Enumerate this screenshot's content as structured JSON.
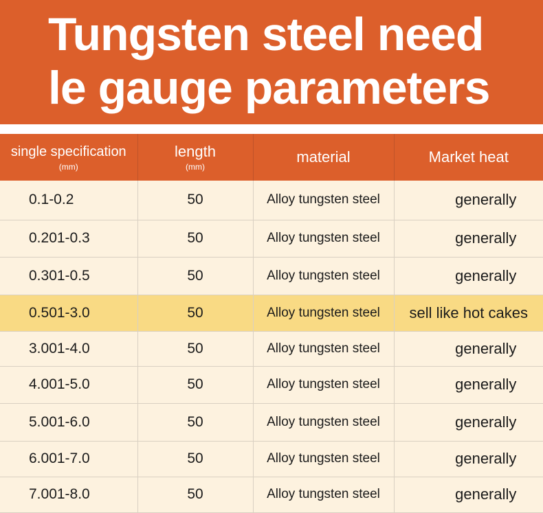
{
  "banner": {
    "line1": "Tungsten steel need",
    "line2": "le gauge parameters"
  },
  "table": {
    "columns": [
      {
        "label": "single specification",
        "unit": "(mm)"
      },
      {
        "label": "length",
        "unit": "(mm)"
      },
      {
        "label": "material",
        "unit": ""
      },
      {
        "label": "Market heat",
        "unit": ""
      }
    ],
    "rows": [
      {
        "spec": "0.1-0.2",
        "length": "50",
        "material": "Alloy tungsten steel",
        "heat": "generally"
      },
      {
        "spec": "0.201-0.3",
        "length": "50",
        "material": "Alloy tungsten steel",
        "heat": "generally"
      },
      {
        "spec": "0.301-0.5",
        "length": "50",
        "material": "Alloy tungsten steel",
        "heat": "generally"
      },
      {
        "spec": "0.501-3.0",
        "length": "50",
        "material": "Alloy tungsten steel",
        "heat": "sell like hot cakes"
      },
      {
        "spec": "3.001-4.0",
        "length": "50",
        "material": "Alloy tungsten steel",
        "heat": "generally"
      },
      {
        "spec": "4.001-5.0",
        "length": "50",
        "material": "Alloy tungsten steel",
        "heat": "generally"
      },
      {
        "spec": "5.001-6.0",
        "length": "50",
        "material": "Alloy tungsten steel",
        "heat": "generally"
      },
      {
        "spec": "6.001-7.0",
        "length": "50",
        "material": "Alloy tungsten steel",
        "heat": "generally"
      },
      {
        "spec": "7.001-8.0",
        "length": "50",
        "material": "Alloy tungsten steel",
        "heat": "generally"
      }
    ]
  },
  "colors": {
    "brand_orange": "#dc5f2b",
    "row_background": "#fdf2df",
    "highlight_row": "#f9da84"
  }
}
